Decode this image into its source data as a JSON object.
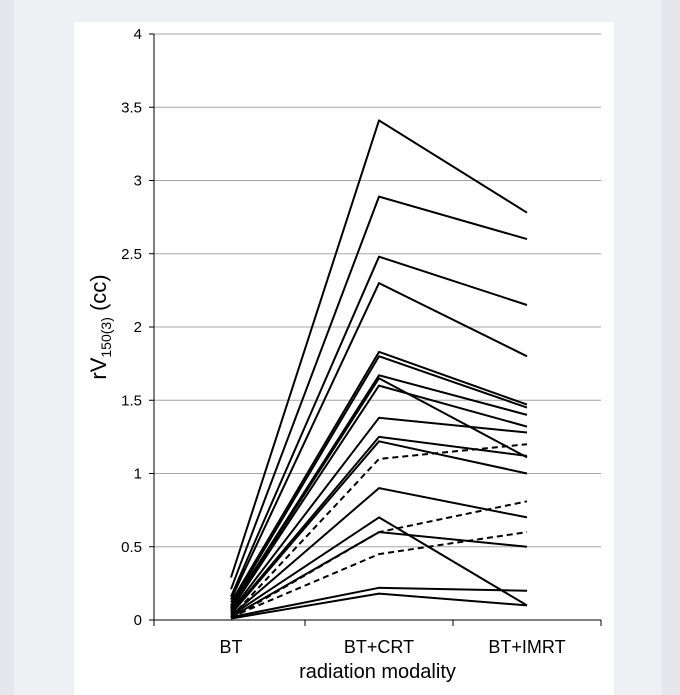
{
  "chart_data": {
    "type": "line",
    "title": "",
    "xlabel": "radiation modality",
    "ylabel": "rV",
    "ylabel_subscript": "150(3)",
    "ylabel_unit": " (cc)",
    "categories": [
      "BT",
      "BT+CRT",
      "BT+IMRT"
    ],
    "ylim": [
      0,
      4
    ],
    "yticks": [
      0,
      0.5,
      1,
      1.5,
      2,
      2.5,
      3,
      3.5,
      4
    ],
    "ytick_labels": [
      "0",
      "0.5",
      "1",
      "1.5",
      "2",
      "2.5",
      "3",
      "3.5",
      "4"
    ],
    "grid": true,
    "legend": "none",
    "line_color": "#000000",
    "grid_color": "#a6a6a6",
    "series": [
      {
        "style": "solid",
        "values": [
          0.29,
          3.41,
          2.78
        ]
      },
      {
        "style": "solid",
        "values": [
          0.21,
          2.89,
          2.6
        ]
      },
      {
        "style": "solid",
        "values": [
          0.16,
          2.48,
          2.15
        ]
      },
      {
        "style": "solid",
        "values": [
          0.14,
          2.3,
          1.8
        ]
      },
      {
        "style": "solid",
        "values": [
          0.12,
          1.83,
          1.47
        ]
      },
      {
        "style": "solid",
        "values": [
          0.1,
          1.8,
          1.45
        ]
      },
      {
        "style": "solid",
        "values": [
          0.09,
          1.67,
          1.4
        ]
      },
      {
        "style": "solid",
        "values": [
          0.08,
          1.65,
          1.11
        ]
      },
      {
        "style": "solid",
        "values": [
          0.07,
          1.6,
          1.32
        ]
      },
      {
        "style": "solid",
        "values": [
          0.06,
          1.38,
          1.28
        ]
      },
      {
        "style": "solid",
        "values": [
          0.05,
          1.25,
          1.12
        ]
      },
      {
        "style": "solid",
        "values": [
          0.04,
          1.22,
          1.0
        ]
      },
      {
        "style": "solid",
        "values": [
          0.03,
          0.9,
          0.7
        ]
      },
      {
        "style": "solid",
        "values": [
          0.03,
          0.7,
          0.1
        ]
      },
      {
        "style": "solid",
        "values": [
          0.02,
          0.6,
          0.5
        ]
      },
      {
        "style": "solid",
        "values": [
          0.02,
          0.22,
          0.2
        ]
      },
      {
        "style": "solid",
        "values": [
          0.01,
          0.18,
          0.1
        ]
      },
      {
        "style": "dashed",
        "values": [
          0.02,
          1.1,
          1.2
        ]
      },
      {
        "style": "dashed",
        "values": [
          0.02,
          0.45,
          0.6
        ]
      },
      {
        "style": "dashed",
        "values": [
          0.01,
          0.6,
          0.81
        ]
      }
    ]
  }
}
